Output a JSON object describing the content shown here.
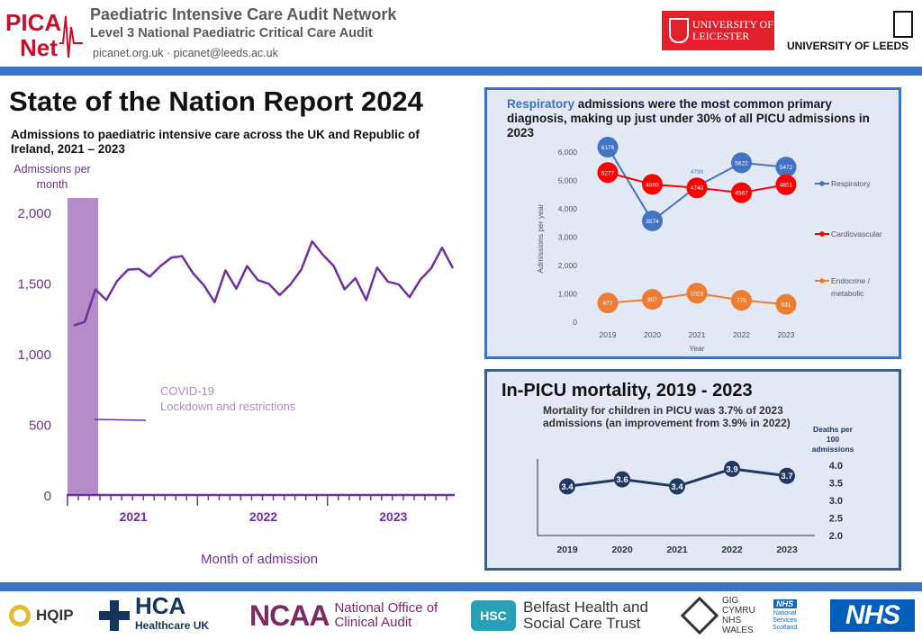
{
  "header": {
    "logo_text": "PICA Net",
    "org_name": "Paediatric Intensive Care Audit Network",
    "org_sub": "Level 3 National Paediatric Critical Care Audit",
    "contact": "picanet.org.uk  ·  picanet@leeds.ac.uk",
    "leicester_text": "UNIVERSITY OF\nLEICESTER",
    "leeds_text": "UNIVERSITY OF LEEDS"
  },
  "main": {
    "title": "State of the Nation Report 2024"
  },
  "colors": {
    "purple": "#7030a0",
    "covid_band": "#b48cc8",
    "respiratory": "#4472c4",
    "cardiovascular": "#ff0000",
    "endocrine": "#ed7d31",
    "mortality": "#203864",
    "accent_bar": "#3c73c4"
  },
  "chart_data": [
    {
      "id": "admissions",
      "type": "line",
      "title": "Admissions to paediatric intensive care across the UK and Republic of Ireland, 2021 – 2023",
      "xlabel": "Month of admission",
      "ylabel": "Admissions per month",
      "ylim": [
        0,
        2000
      ],
      "yticks": [
        0,
        500,
        1000,
        1500,
        2000
      ],
      "ytick_labels": [
        "0",
        "500",
        "1,000",
        "1,500",
        "2,000"
      ],
      "year_labels": [
        {
          "label": "2021",
          "month_index": 5.5
        },
        {
          "label": "2022",
          "month_index": 17.5
        },
        {
          "label": "2023",
          "month_index": 29.5
        }
      ],
      "grid": false,
      "annotation": "COVID-19 Lockdown and restrictions",
      "annotation_months": [
        0,
        3
      ],
      "series": [
        {
          "values": [
            1200,
            1225,
            1455,
            1380,
            1515,
            1595,
            1600,
            1545,
            1620,
            1680,
            1690,
            1570,
            1485,
            1365,
            1590,
            1460,
            1620,
            1520,
            1495,
            1415,
            1490,
            1595,
            1795,
            1700,
            1620,
            1455,
            1535,
            1380,
            1610,
            1510,
            1490,
            1400,
            1525,
            1605,
            1750,
            1605
          ]
        }
      ]
    },
    {
      "id": "diagnosis",
      "type": "line",
      "title": "Respiratory admissions were the most common primary diagnosis, making up just under 30% of all PICU admissions in 2023",
      "title_highlight": "Respiratory",
      "title_rest": " admissions were the most common primary diagnosis, making up just under 30% of all PICU admissions in 2023",
      "xlabel": "Year",
      "ylabel": "Admissions per year",
      "ylim": [
        0,
        6000
      ],
      "yticks": [
        0,
        1000,
        2000,
        3000,
        4000,
        5000,
        6000
      ],
      "ytick_labels": [
        "0",
        "1,000",
        "2,000",
        "3,000",
        "4,000",
        "5,000",
        "6,000"
      ],
      "categories": [
        "2019",
        "2020",
        "2021",
        "2022",
        "2023"
      ],
      "legend": "right",
      "series": [
        {
          "name": "Respiratory",
          "color": "#4472c4",
          "values": [
            6176,
            3574,
            4790,
            5622,
            5472
          ],
          "labels": [
            "6176",
            "3574",
            "4790",
            "5622",
            "5472"
          ]
        },
        {
          "name": "Cardiovascular",
          "color": "#ff0000",
          "values": [
            5277,
            4860,
            4740,
            4567,
            4851
          ],
          "labels": [
            "5277",
            "4860",
            "4740",
            "4567",
            "4851"
          ]
        },
        {
          "name": "Endocrine / metabolic",
          "color": "#ed7d31",
          "values": [
            677,
            807,
            1023,
            775,
            631
          ],
          "labels": [
            "677",
            "807",
            "1023",
            "775",
            "631"
          ]
        }
      ]
    },
    {
      "id": "mortality",
      "type": "line",
      "title": "In-PICU mortality, 2019 - 2023",
      "description": "Mortality for children in PICU was 3.7% of 2023 admissions (an improvement from 3.9% in 2022)",
      "ylabel": "Deaths per 100 admissions",
      "ylim": [
        2.0,
        4.0
      ],
      "yticks": [
        2.0,
        2.5,
        3.0,
        3.5,
        4.0
      ],
      "ytick_labels": [
        "2.0",
        "2.5",
        "3.0",
        "3.5",
        "4.0"
      ],
      "categories": [
        "2019",
        "2020",
        "2021",
        "2022",
        "2023"
      ],
      "series": [
        {
          "color": "#203864",
          "values": [
            3.4,
            3.6,
            3.4,
            3.9,
            3.7
          ],
          "labels": [
            "3.4",
            "3.6",
            "3.4",
            "3.9",
            "3.7"
          ]
        }
      ]
    }
  ],
  "footer": {
    "hqip": "HQIP",
    "hca": "HCA",
    "hca_sub": "Healthcare UK",
    "ncaa": "NCAA",
    "ncaa_sub": "National Office of\nClinical Audit",
    "hsc_mark": "HSC",
    "hsc_sub": "Belfast Health and\nSocial Care Trust",
    "gig_sub": "GIG\nCYMRU\nNHS\nWALES",
    "nhss_box": "NHS",
    "nhss_sub": "National\nServices\nScotland",
    "nhs": "NHS"
  }
}
